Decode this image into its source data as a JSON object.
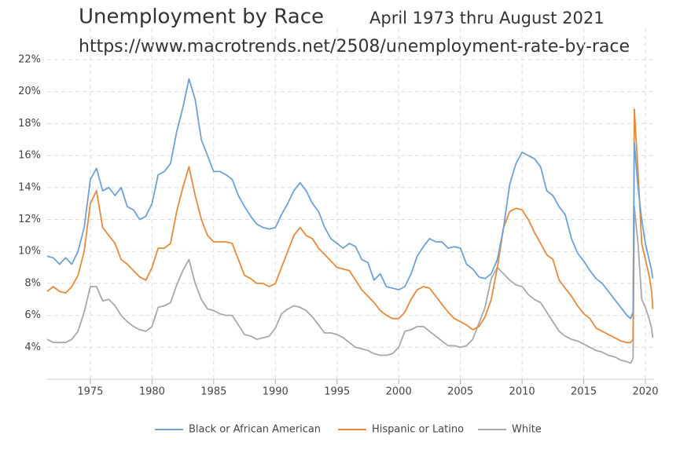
{
  "chart_data": {
    "type": "line",
    "title": "Unemployment by Race",
    "subtitle": "April 1973 thru August 2021",
    "source": "https://www.macrotrends.net/2508/unemployment-rate-by-race",
    "x": [
      1971.5,
      1972,
      1972.5,
      1973,
      1973.5,
      1974,
      1974.5,
      1975,
      1975.5,
      1976,
      1976.5,
      1977,
      1977.5,
      1978,
      1978.5,
      1979,
      1979.5,
      1980,
      1980.5,
      1981,
      1981.5,
      1982,
      1982.5,
      1983,
      1983.5,
      1984,
      1984.5,
      1985,
      1985.5,
      1986,
      1986.5,
      1987,
      1987.5,
      1988,
      1988.5,
      1989,
      1989.5,
      1990,
      1990.5,
      1991,
      1991.5,
      1992,
      1992.5,
      1993,
      1993.5,
      1994,
      1994.5,
      1995,
      1995.5,
      1996,
      1996.5,
      1997,
      1997.5,
      1998,
      1998.5,
      1999,
      1999.5,
      2000,
      2000.5,
      2001,
      2001.5,
      2002,
      2002.5,
      2003,
      2003.5,
      2004,
      2004.5,
      2005,
      2005.5,
      2006,
      2006.5,
      2007,
      2007.5,
      2008,
      2008.5,
      2009,
      2009.5,
      2010,
      2010.5,
      2011,
      2011.5,
      2012,
      2012.5,
      2013,
      2013.5,
      2014,
      2014.5,
      2015,
      2015.5,
      2016,
      2016.5,
      2017,
      2017.5,
      2018,
      2018.5,
      2018.8,
      2019,
      2019.1,
      2019.4,
      2019.7,
      2020,
      2020.3,
      2020.5,
      2020.6
    ],
    "series": [
      {
        "name": "Black or African American",
        "color": "#6fa1d3",
        "values": [
          9.7,
          9.6,
          9.2,
          9.6,
          9.2,
          10.0,
          11.5,
          14.5,
          15.2,
          13.8,
          14.0,
          13.5,
          14.0,
          12.8,
          12.6,
          12.0,
          12.2,
          13.0,
          14.8,
          15.0,
          15.5,
          17.5,
          19.0,
          20.8,
          19.5,
          17.0,
          16.0,
          15.0,
          15.0,
          14.8,
          14.5,
          13.5,
          12.8,
          12.2,
          11.7,
          11.5,
          11.4,
          11.5,
          12.3,
          13.0,
          13.8,
          14.3,
          13.8,
          13.0,
          12.5,
          11.5,
          10.8,
          10.5,
          10.2,
          10.5,
          10.3,
          9.5,
          9.3,
          8.2,
          8.6,
          7.8,
          7.7,
          7.6,
          7.8,
          8.6,
          9.7,
          10.3,
          10.8,
          10.6,
          10.6,
          10.2,
          10.3,
          10.2,
          9.2,
          8.9,
          8.4,
          8.3,
          8.6,
          9.5,
          11.5,
          14.2,
          15.5,
          16.2,
          16.0,
          15.8,
          15.3,
          13.8,
          13.5,
          12.8,
          12.3,
          10.8,
          9.9,
          9.4,
          8.8,
          8.3,
          8.0,
          7.5,
          7.0,
          6.5,
          6.0,
          5.8,
          6.2,
          16.8,
          14.0,
          12.0,
          10.5,
          9.5,
          8.8,
          8.3
        ]
      },
      {
        "name": "Hispanic or Latino",
        "color": "#e8893a",
        "values": [
          7.5,
          7.8,
          7.5,
          7.4,
          7.8,
          8.5,
          10.0,
          13.0,
          13.8,
          11.5,
          11.0,
          10.5,
          9.5,
          9.2,
          8.8,
          8.4,
          8.2,
          9.0,
          10.2,
          10.2,
          10.5,
          12.5,
          14.0,
          15.3,
          13.5,
          12.0,
          11.0,
          10.6,
          10.6,
          10.6,
          10.5,
          9.5,
          8.5,
          8.3,
          8.0,
          8.0,
          7.8,
          8.0,
          9.0,
          10.0,
          11.0,
          11.5,
          11.0,
          10.8,
          10.2,
          9.8,
          9.4,
          9.0,
          8.9,
          8.8,
          8.2,
          7.6,
          7.2,
          6.8,
          6.3,
          6.0,
          5.8,
          5.8,
          6.2,
          7.0,
          7.6,
          7.8,
          7.7,
          7.2,
          6.7,
          6.2,
          5.8,
          5.6,
          5.4,
          5.1,
          5.3,
          5.9,
          7.0,
          9.0,
          11.5,
          12.5,
          12.7,
          12.6,
          12.0,
          11.2,
          10.5,
          9.8,
          9.5,
          8.2,
          7.7,
          7.2,
          6.6,
          6.1,
          5.8,
          5.2,
          5.0,
          4.8,
          4.6,
          4.4,
          4.3,
          4.3,
          4.5,
          18.9,
          15.0,
          10.5,
          9.5,
          8.5,
          7.5,
          6.4
        ]
      },
      {
        "name": "White",
        "color": "#a8a8a8",
        "values": [
          4.5,
          4.3,
          4.3,
          4.3,
          4.5,
          5.0,
          6.2,
          7.8,
          7.8,
          6.9,
          7.0,
          6.6,
          6.0,
          5.6,
          5.3,
          5.1,
          5.0,
          5.3,
          6.5,
          6.6,
          6.8,
          7.9,
          8.8,
          9.5,
          8.0,
          7.0,
          6.4,
          6.3,
          6.1,
          6.0,
          6.0,
          5.4,
          4.8,
          4.7,
          4.5,
          4.6,
          4.7,
          5.2,
          6.1,
          6.4,
          6.6,
          6.5,
          6.3,
          5.9,
          5.4,
          4.9,
          4.9,
          4.8,
          4.6,
          4.3,
          4.0,
          3.9,
          3.8,
          3.6,
          3.5,
          3.5,
          3.6,
          4.0,
          5.0,
          5.1,
          5.3,
          5.3,
          5.0,
          4.7,
          4.4,
          4.1,
          4.1,
          4.0,
          4.1,
          4.5,
          5.5,
          6.5,
          8.3,
          9.0,
          8.6,
          8.2,
          7.9,
          7.8,
          7.3,
          7.0,
          6.8,
          6.2,
          5.6,
          5.0,
          4.7,
          4.5,
          4.4,
          4.2,
          4.0,
          3.8,
          3.7,
          3.5,
          3.4,
          3.2,
          3.1,
          3.0,
          3.3,
          12.8,
          10.5,
          7.0,
          6.5,
          5.8,
          5.2,
          4.6
        ]
      }
    ],
    "xlim": [
      1971.5,
      2020.7
    ],
    "xticks": [
      1975,
      1980,
      1985,
      1990,
      1995,
      2000,
      2005,
      2010,
      2015,
      2020
    ],
    "ylim": [
      2,
      22
    ],
    "yticks": [
      {
        "value": 4,
        "label": "4%"
      },
      {
        "value": 6,
        "label": "6%"
      },
      {
        "value": 8,
        "label": "8%"
      },
      {
        "value": 10,
        "label": "10%"
      },
      {
        "value": 12,
        "label": "12%"
      },
      {
        "value": 14,
        "label": "14%"
      },
      {
        "value": 16,
        "label": "16%"
      },
      {
        "value": 18,
        "label": "18%"
      },
      {
        "value": 20,
        "label": "20%"
      },
      {
        "value": 22,
        "label": "22%"
      }
    ],
    "grid": true,
    "legend": "bottom"
  }
}
